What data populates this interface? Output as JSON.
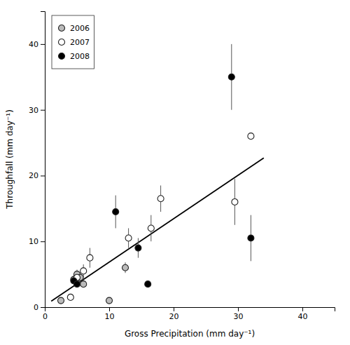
{
  "chart_data": {
    "type": "scatter",
    "xlabel": "Gross Precipitation (mm day⁻¹)",
    "ylabel": "Throughfall (mm day⁻¹)",
    "xlim": [
      0,
      45
    ],
    "ylim": [
      0,
      45
    ],
    "xticks": [
      0,
      10,
      20,
      30,
      40
    ],
    "yticks": [
      0,
      10,
      20,
      30,
      40
    ],
    "grid": false,
    "legend": "upper left",
    "series": [
      {
        "type": "line",
        "color": "#000000",
        "line_style": "solid",
        "x": [
          1.0,
          34.0
        ],
        "values": [
          0.91,
          22.69
        ]
      },
      {
        "type": "scatter",
        "name": "2006",
        "color": "#bbbbbb",
        "marker": "circle",
        "x": [
          2.5,
          4.5,
          5.0,
          5.5,
          6.0,
          10.0,
          12.5
        ],
        "values": [
          1.0,
          4.2,
          5.0,
          4.5,
          3.5,
          1.0,
          6.0
        ],
        "errors": [
          0.0,
          0.8,
          0.7,
          0.7,
          0.5,
          0.3,
          0.8
        ]
      },
      {
        "type": "scatter",
        "name": "2007",
        "color": "#ffffff",
        "marker": "circle",
        "x": [
          4.0,
          5.0,
          6.0,
          7.0,
          13.0,
          16.5,
          18.0,
          29.5,
          32.0
        ],
        "values": [
          1.5,
          4.5,
          5.5,
          7.5,
          10.5,
          12.0,
          16.5,
          16.0,
          26.0
        ],
        "errors": [
          0.5,
          0.8,
          1.0,
          1.5,
          1.5,
          2.0,
          2.0,
          3.5,
          0.5
        ]
      },
      {
        "type": "scatter",
        "name": "2008",
        "color": "#000000",
        "marker": "circle",
        "x": [
          4.5,
          5.0,
          11.0,
          14.5,
          16.0,
          29.0,
          32.0
        ],
        "values": [
          4.0,
          3.5,
          14.5,
          9.0,
          3.5,
          35.0,
          10.5
        ],
        "errors": [
          0.5,
          0.5,
          2.5,
          1.5,
          0.5,
          5.0,
          3.5
        ]
      }
    ]
  }
}
